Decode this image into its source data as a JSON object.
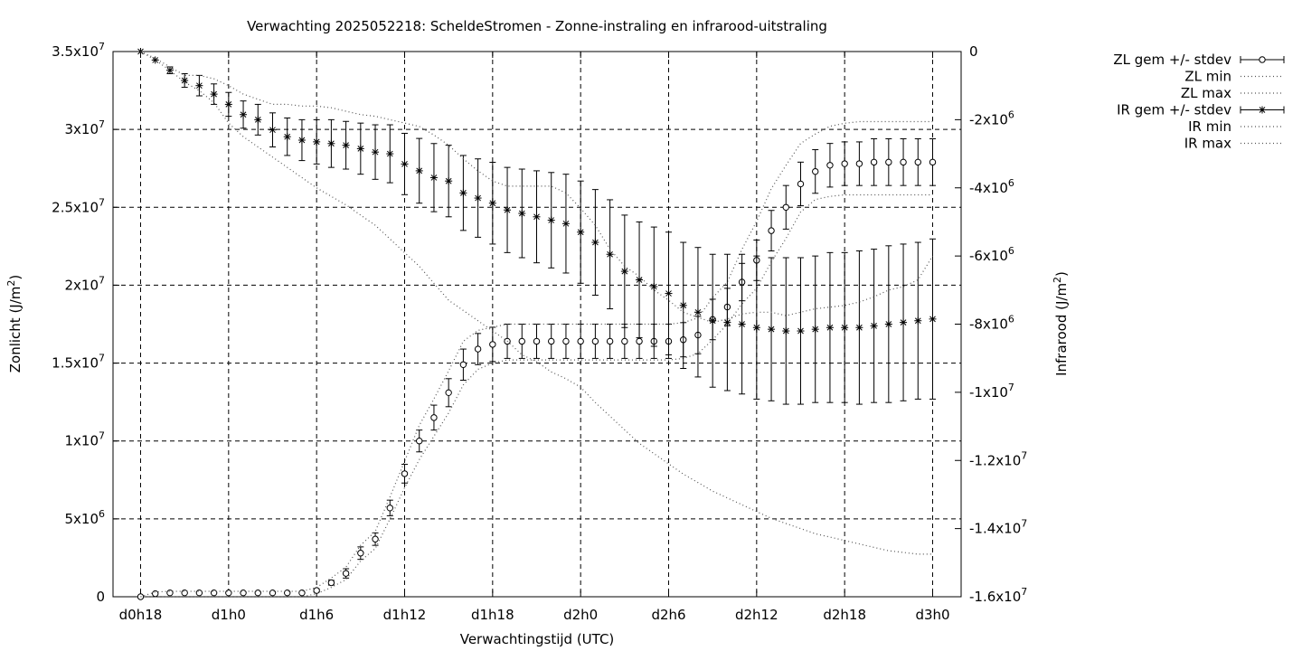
{
  "chart_data": {
    "type": "line",
    "title": "Verwachting 2025052218: ScheldeStromen - Zonne-instraling en infrarood-uitstraling",
    "xlabel": "Verwachtingstijd (UTC)",
    "ylabel": "Zonlicht (J/m2)",
    "y2label": "Infrarood (J/m2)",
    "xlim": [
      18,
      72
    ],
    "ylim": [
      0,
      35000000
    ],
    "y2lim": [
      -16000000,
      0
    ],
    "x_tick_values": [
      18,
      24,
      30,
      36,
      42,
      48,
      54,
      60,
      66,
      72
    ],
    "x_tick_labels": [
      "d0h18",
      "d1h0",
      "d1h6",
      "d1h12",
      "d1h18",
      "d2h0",
      "d2h6",
      "d2h12",
      "d2h18",
      "d3h0"
    ],
    "y_tick_values": [
      0,
      5000000,
      10000000,
      15000000,
      20000000,
      25000000,
      30000000,
      35000000
    ],
    "y_tick_labels": [
      {
        "m": "0",
        "e": ""
      },
      {
        "m": "5x10",
        "e": "6"
      },
      {
        "m": "1x10",
        "e": "7"
      },
      {
        "m": "1.5x10",
        "e": "7"
      },
      {
        "m": "2x10",
        "e": "7"
      },
      {
        "m": "2.5x10",
        "e": "7"
      },
      {
        "m": "3x10",
        "e": "7"
      },
      {
        "m": "3.5x10",
        "e": "7"
      }
    ],
    "y2_tick_values": [
      0,
      -2000000,
      -4000000,
      -6000000,
      -8000000,
      -10000000,
      -12000000,
      -14000000,
      -16000000
    ],
    "y2_tick_labels": [
      {
        "m": "0",
        "e": ""
      },
      {
        "m": "-2x10",
        "e": "6"
      },
      {
        "m": "-4x10",
        "e": "6"
      },
      {
        "m": "-6x10",
        "e": "6"
      },
      {
        "m": "-8x10",
        "e": "6"
      },
      {
        "m": "-1x10",
        "e": "7"
      },
      {
        "m": "-1.2x10",
        "e": "7"
      },
      {
        "m": "-1.4x10",
        "e": "7"
      },
      {
        "m": "-1.6x10",
        "e": "7"
      }
    ],
    "grid": true,
    "legend_position": "outside-right-top",
    "x": [
      18,
      19,
      20,
      21,
      22,
      23,
      24,
      25,
      26,
      27,
      28,
      29,
      30,
      31,
      32,
      33,
      34,
      35,
      36,
      37,
      38,
      39,
      40,
      41,
      42,
      43,
      44,
      45,
      46,
      47,
      48,
      49,
      50,
      51,
      52,
      53,
      54,
      55,
      56,
      57,
      58,
      59,
      60,
      61,
      62,
      63,
      64,
      65,
      66,
      67,
      68,
      69,
      70,
      71,
      72
    ],
    "series": [
      {
        "name": "ZL gem +/- stdev",
        "axis": "y1",
        "marker": "circle",
        "values": [
          0,
          200000,
          250000,
          250000,
          250000,
          250000,
          250000,
          250000,
          250000,
          250000,
          250000,
          250000,
          400000,
          900000,
          1500000,
          2800000,
          3700000,
          5700000,
          7900000,
          10000000,
          11500000,
          13100000,
          14900000,
          15900000,
          16200000,
          16400000,
          16400000,
          16400000,
          16400000,
          16400000,
          16400000,
          16400000,
          16400000,
          16400000,
          16400000,
          16400000,
          16400000,
          16500000,
          16800000,
          17800000,
          18600000,
          20200000,
          21600000,
          23500000,
          25000000,
          26500000,
          27300000,
          27700000,
          27800000,
          27800000,
          27900000,
          27900000,
          27900000,
          27900000,
          27900000
        ],
        "stdev": [
          0,
          0,
          0,
          0,
          0,
          0,
          0,
          0,
          0,
          0,
          0,
          0,
          100000,
          150000,
          300000,
          400000,
          400000,
          500000,
          600000,
          700000,
          800000,
          900000,
          1000000,
          1000000,
          1100000,
          1100000,
          1100000,
          1100000,
          1100000,
          1100000,
          1100000,
          1100000,
          1100000,
          1100000,
          1100000,
          1100000,
          1100000,
          1100000,
          1200000,
          1300000,
          1200000,
          1200000,
          1300000,
          1300000,
          1400000,
          1400000,
          1400000,
          1400000,
          1400000,
          1400000,
          1500000,
          1500000,
          1500000,
          1500000,
          1500000
        ]
      },
      {
        "name": "ZL min",
        "axis": "y1",
        "style": "dotted",
        "values": [
          0,
          0,
          0,
          0,
          0,
          0,
          0,
          0,
          0,
          0,
          0,
          0,
          200000,
          600000,
          1100000,
          2300000,
          3100000,
          5000000,
          7000000,
          8800000,
          10300000,
          11800000,
          13600000,
          14600000,
          15000000,
          15200000,
          15200000,
          15200000,
          15200000,
          15200000,
          15200000,
          15200000,
          15200000,
          15200000,
          15200000,
          15200000,
          15200000,
          15300000,
          15600000,
          16500000,
          17500000,
          18800000,
          19800000,
          21500000,
          23000000,
          24700000,
          25500000,
          25700000,
          25800000,
          25800000,
          25800000,
          25800000,
          25800000,
          25800000,
          25800000
        ]
      },
      {
        "name": "ZL max",
        "axis": "y1",
        "style": "dotted",
        "values": [
          0,
          300000,
          350000,
          350000,
          350000,
          350000,
          350000,
          350000,
          350000,
          350000,
          350000,
          350000,
          600000,
          1200000,
          1900000,
          3300000,
          4200000,
          6400000,
          8700000,
          11000000,
          12700000,
          14500000,
          16400000,
          17100000,
          17300000,
          17500000,
          17500000,
          17500000,
          17500000,
          17500000,
          17500000,
          17500000,
          17500000,
          17500000,
          17500000,
          17500000,
          17500000,
          17600000,
          17900000,
          19200000,
          20200000,
          22300000,
          24100000,
          26200000,
          27700000,
          29100000,
          29700000,
          30200000,
          30400000,
          30500000,
          30500000,
          30500000,
          30500000,
          30500000,
          30500000
        ]
      },
      {
        "name": "IR gem +/- stdev",
        "axis": "y2",
        "marker": "asterisk",
        "values": [
          0,
          -250000,
          -550000,
          -850000,
          -1000000,
          -1250000,
          -1550000,
          -1850000,
          -2000000,
          -2300000,
          -2500000,
          -2600000,
          -2650000,
          -2700000,
          -2750000,
          -2850000,
          -2950000,
          -3000000,
          -3300000,
          -3500000,
          -3700000,
          -3800000,
          -4150000,
          -4300000,
          -4450000,
          -4650000,
          -4750000,
          -4850000,
          -4950000,
          -5050000,
          -5300000,
          -5600000,
          -5950000,
          -6450000,
          -6700000,
          -6900000,
          -7100000,
          -7450000,
          -7650000,
          -7900000,
          -7950000,
          -8000000,
          -8100000,
          -8150000,
          -8200000,
          -8200000,
          -8150000,
          -8100000,
          -8100000,
          -8100000,
          -8050000,
          -8000000,
          -7950000,
          -7900000,
          -7850000
        ],
        "stdev": [
          0,
          0,
          100000,
          200000,
          300000,
          300000,
          350000,
          400000,
          450000,
          500000,
          550000,
          600000,
          650000,
          700000,
          700000,
          750000,
          800000,
          850000,
          900000,
          950000,
          1000000,
          1050000,
          1100000,
          1150000,
          1200000,
          1250000,
          1300000,
          1350000,
          1400000,
          1450000,
          1500000,
          1550000,
          1600000,
          1650000,
          1700000,
          1750000,
          1800000,
          1850000,
          1900000,
          1950000,
          2000000,
          2050000,
          2100000,
          2100000,
          2150000,
          2150000,
          2150000,
          2200000,
          2200000,
          2250000,
          2250000,
          2300000,
          2300000,
          2300000,
          2350000
        ]
      },
      {
        "name": "IR min",
        "axis": "y2",
        "style": "dotted",
        "values": [
          0,
          -250000,
          -550000,
          -900000,
          -1150000,
          -1500000,
          -2100000,
          -2500000,
          -2800000,
          -3100000,
          -3400000,
          -3700000,
          -4000000,
          -4250000,
          -4500000,
          -4800000,
          -5100000,
          -5500000,
          -5900000,
          -6300000,
          -6800000,
          -7300000,
          -7600000,
          -7900000,
          -8200000,
          -8500000,
          -8900000,
          -9100000,
          -9400000,
          -9600000,
          -9850000,
          -10300000,
          -10700000,
          -11100000,
          -11500000,
          -11800000,
          -12100000,
          -12400000,
          -12650000,
          -12900000,
          -13100000,
          -13300000,
          -13500000,
          -13700000,
          -13850000,
          -14000000,
          -14150000,
          -14250000,
          -14350000,
          -14450000,
          -14550000,
          -14650000,
          -14700000,
          -14750000,
          -14750000
        ]
      },
      {
        "name": "IR max",
        "axis": "y2",
        "style": "dotted",
        "values": [
          0,
          -200000,
          -450000,
          -700000,
          -700000,
          -800000,
          -1000000,
          -1250000,
          -1400000,
          -1550000,
          -1550000,
          -1600000,
          -1600000,
          -1650000,
          -1750000,
          -1850000,
          -1900000,
          -2000000,
          -2100000,
          -2200000,
          -2450000,
          -2750000,
          -3150000,
          -3500000,
          -3800000,
          -3950000,
          -3950000,
          -3950000,
          -3950000,
          -4150000,
          -4600000,
          -5100000,
          -5800000,
          -6300000,
          -6600000,
          -7000000,
          -7300000,
          -7650000,
          -7800000,
          -7950000,
          -7850000,
          -7700000,
          -7650000,
          -7650000,
          -7750000,
          -7650000,
          -7550000,
          -7500000,
          -7450000,
          -7350000,
          -7200000,
          -7000000,
          -6900000,
          -6700000,
          -6000000
        ]
      }
    ]
  }
}
